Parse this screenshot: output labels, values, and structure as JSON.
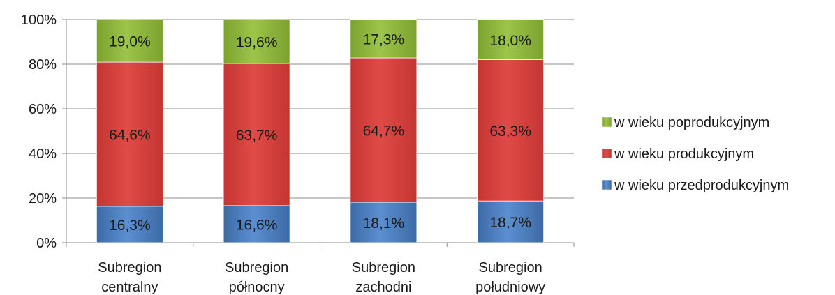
{
  "chart_data": {
    "type": "bar",
    "stacked": true,
    "percent": true,
    "categories": [
      [
        "Subregion",
        "centralny"
      ],
      [
        "Subregion",
        "północny"
      ],
      [
        "Subregion",
        "zachodni"
      ],
      [
        "Subregion",
        "południowy"
      ]
    ],
    "series": [
      {
        "name": "w wieku przedprodukcyjnym",
        "values": [
          16.3,
          16.6,
          18.1,
          18.7
        ],
        "labels": [
          "16,3%",
          "16,6%",
          "18,1%",
          "18,7%"
        ],
        "color": "#4f81bd"
      },
      {
        "name": "w wieku produkcyjnym",
        "values": [
          64.6,
          63.7,
          64.7,
          63.3
        ],
        "labels": [
          "64,6%",
          "63,7%",
          "64,7%",
          "63,3%"
        ],
        "color": "#d9413e"
      },
      {
        "name": "w wieku poprodukcyjnym",
        "values": [
          19.0,
          19.6,
          17.3,
          18.0
        ],
        "labels": [
          "19,0%",
          "19,6%",
          "17,3%",
          "18,0%"
        ],
        "color": "#8fb83e"
      }
    ],
    "y_ticks": [
      "0%",
      "20%",
      "40%",
      "60%",
      "80%",
      "100%"
    ],
    "ylim": [
      0,
      100
    ],
    "grid": true,
    "legend_position": "right",
    "legend_order": [
      2,
      1,
      0
    ]
  }
}
